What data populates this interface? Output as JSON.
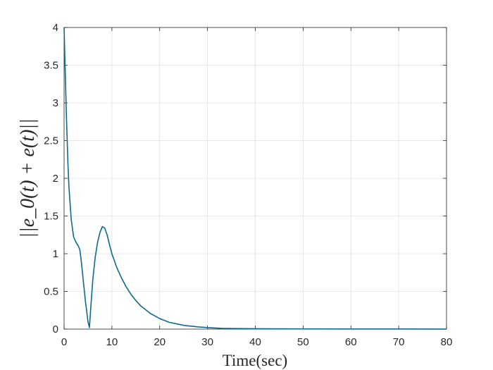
{
  "chart_data": {
    "type": "line",
    "title": "",
    "xlabel": "Time(sec)",
    "ylabel": "||e_0(t) + e(t)||",
    "xlim": [
      0,
      80
    ],
    "ylim": [
      0,
      4
    ],
    "xticks": [
      0,
      10,
      20,
      30,
      40,
      50,
      60,
      70,
      80
    ],
    "yticks": [
      0,
      0.5,
      1,
      1.5,
      2,
      2.5,
      3,
      3.5,
      4
    ],
    "xtick_labels": [
      "0",
      "10",
      "20",
      "30",
      "40",
      "50",
      "60",
      "70",
      "80"
    ],
    "ytick_labels": [
      "0",
      "0.5",
      "1",
      "1.5",
      "2",
      "2.5",
      "3",
      "3.5",
      "4"
    ],
    "grid": true,
    "line_color": "#0d6a8f",
    "series": [
      {
        "x": [
          0,
          0.2,
          0.5,
          0.8,
          1.0,
          1.5,
          2.0,
          2.5,
          3.0,
          3.3,
          3.6,
          4.0,
          4.5,
          5.0,
          5.3,
          5.6,
          6.0,
          6.5,
          7.0,
          7.5,
          8.0,
          8.5,
          9.0,
          9.5,
          10,
          11,
          12,
          13,
          14,
          15,
          16,
          17,
          18,
          20,
          22,
          25,
          28,
          30,
          33,
          36,
          40,
          45,
          50,
          60,
          70,
          80
        ],
        "y": [
          4.0,
          3.5,
          2.8,
          2.2,
          1.9,
          1.45,
          1.22,
          1.15,
          1.1,
          1.05,
          0.9,
          0.65,
          0.35,
          0.1,
          0.02,
          0.3,
          0.65,
          0.95,
          1.15,
          1.28,
          1.36,
          1.34,
          1.25,
          1.12,
          1.0,
          0.82,
          0.68,
          0.56,
          0.46,
          0.38,
          0.31,
          0.26,
          0.21,
          0.14,
          0.09,
          0.05,
          0.03,
          0.02,
          0.01,
          0.008,
          0.005,
          0.004,
          0.003,
          0.002,
          0.002,
          0.001
        ]
      }
    ]
  }
}
